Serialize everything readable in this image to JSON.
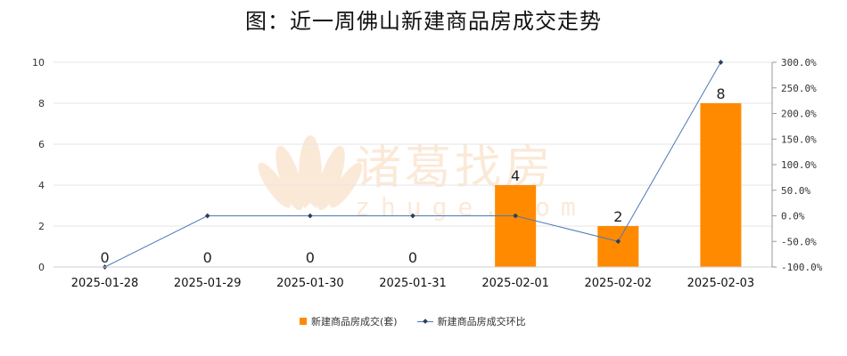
{
  "title": "图：近一周佛山新建商品房成交走势",
  "watermark": {
    "brand": "诸葛找房",
    "domain": "zhuge.com"
  },
  "chart_data": {
    "type": "bar",
    "categories": [
      "2025-01-28",
      "2025-01-29",
      "2025-01-30",
      "2025-01-31",
      "2025-02-01",
      "2025-02-02",
      "2025-02-03"
    ],
    "series": [
      {
        "name": "新建商品房成交(套)",
        "type": "bar",
        "axis": "left",
        "color": "#ff8a00",
        "values": [
          0,
          0,
          0,
          0,
          4,
          2,
          8
        ],
        "labels": [
          "0",
          "0",
          "0",
          "0",
          "4",
          "2",
          "8"
        ]
      },
      {
        "name": "新建商品房成交环比",
        "type": "line",
        "axis": "right",
        "color": "#4a79b8",
        "values": [
          -100,
          0,
          0,
          0,
          0,
          -50,
          300
        ]
      }
    ],
    "y_left": {
      "min": 0,
      "max": 10,
      "ticks": [
        "0",
        "2",
        "4",
        "6",
        "8",
        "10"
      ]
    },
    "y_right": {
      "min": -100,
      "max": 300,
      "ticks": [
        "-100.0%",
        "-50.0%",
        "0.0%",
        "50.0%",
        "100.0%",
        "150.0%",
        "200.0%",
        "250.0%",
        "300.0%"
      ]
    },
    "grid": true,
    "legend_position": "bottom"
  }
}
